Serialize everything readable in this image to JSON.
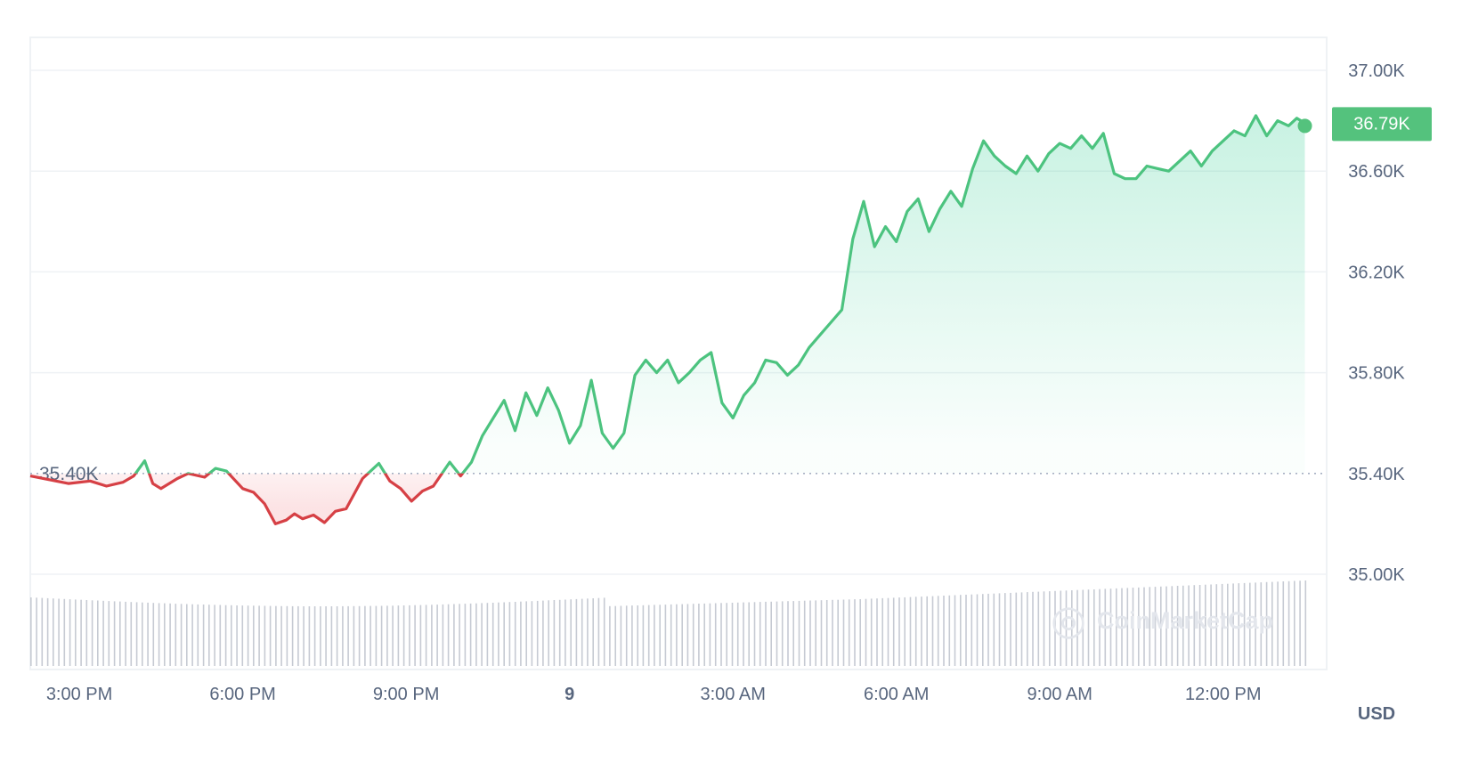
{
  "chart_data": {
    "type": "line",
    "y_unit": "USD",
    "yticks": [
      {
        "value": 35000,
        "label": "35.00K"
      },
      {
        "value": 35400,
        "label": "35.40K"
      },
      {
        "value": 35800,
        "label": "35.80K"
      },
      {
        "value": 36200,
        "label": "36.20K"
      },
      {
        "value": 36600,
        "label": "36.60K"
      },
      {
        "value": 37000,
        "label": "37.00K"
      }
    ],
    "ylim": [
      34640,
      37140
    ],
    "xlim": [
      14.1,
      37.9
    ],
    "xticks": [
      {
        "value": 15,
        "label": "3:00 PM",
        "bold": false
      },
      {
        "value": 18,
        "label": "6:00 PM",
        "bold": false
      },
      {
        "value": 21,
        "label": "9:00 PM",
        "bold": false
      },
      {
        "value": 24,
        "label": "9",
        "bold": true
      },
      {
        "value": 27,
        "label": "3:00 AM",
        "bold": false
      },
      {
        "value": 30,
        "label": "6:00 AM",
        "bold": false
      },
      {
        "value": 33,
        "label": "9:00 AM",
        "bold": false
      },
      {
        "value": 36,
        "label": "12:00 PM",
        "bold": false
      }
    ],
    "reference": {
      "value": 35400,
      "label": "35.40K"
    },
    "current": {
      "value": 36790,
      "label": "36.79K"
    },
    "colors": {
      "up": "#16c784",
      "down": "#ea3943",
      "line_up": "#4cc37f",
      "line_down": "#d64045",
      "badge": "#54c27d",
      "volume": "#c6cad3"
    },
    "series": [
      {
        "x": [
          14.1,
          14.8,
          15.2,
          15.5,
          15.8,
          16.0,
          16.2,
          16.35,
          16.5,
          16.8,
          17.0,
          17.3,
          17.5,
          17.7,
          18.0,
          18.2,
          18.4,
          18.6,
          18.8,
          18.95,
          19.1,
          19.3,
          19.5,
          19.7,
          19.9,
          20.2,
          20.5,
          20.7,
          20.9,
          21.1,
          21.3,
          21.5,
          21.8,
          22.0,
          22.2,
          22.4,
          22.6,
          22.8,
          23.0,
          23.2,
          23.4,
          23.6,
          23.8,
          24.0,
          24.2,
          24.4,
          24.6,
          24.8,
          25.0,
          25.2,
          25.4,
          25.6,
          25.8,
          26.0,
          26.2,
          26.4,
          26.6,
          26.8,
          27.0,
          27.2,
          27.4,
          27.6,
          27.8,
          28.0,
          28.2,
          28.4,
          28.6,
          28.8,
          29.0,
          29.2,
          29.4,
          29.6,
          29.8,
          30.0,
          30.2,
          30.4,
          30.6,
          30.8,
          31.0,
          31.2,
          31.4,
          31.6,
          31.8,
          32.0,
          32.2,
          32.4,
          32.6,
          32.8,
          33.0,
          33.2,
          33.4,
          33.6,
          33.8,
          34.0,
          34.2,
          34.4,
          34.6,
          34.8,
          35.0,
          35.2,
          35.4,
          35.6,
          35.8,
          36.0,
          36.2,
          36.4,
          36.6,
          36.8,
          37.0,
          37.2,
          37.35,
          37.5
        ],
        "y": [
          35390,
          35360,
          35370,
          35350,
          35365,
          35390,
          35450,
          35360,
          35340,
          35380,
          35400,
          35385,
          35420,
          35410,
          35340,
          35325,
          35280,
          35200,
          35215,
          35240,
          35220,
          35235,
          35205,
          35250,
          35260,
          35380,
          35440,
          35370,
          35340,
          35290,
          35330,
          35350,
          35445,
          35390,
          35445,
          35550,
          35620,
          35690,
          35570,
          35720,
          35630,
          35740,
          35650,
          35520,
          35590,
          35770,
          35560,
          35500,
          35560,
          35790,
          35850,
          35800,
          35850,
          35760,
          35800,
          35850,
          35880,
          35680,
          35620,
          35710,
          35760,
          35850,
          35840,
          35790,
          35830,
          35900,
          35950,
          36000,
          36050,
          36330,
          36480,
          36300,
          36380,
          36320,
          36440,
          36490,
          36360,
          36450,
          36520,
          36460,
          36610,
          36720,
          36660,
          36620,
          36590,
          36660,
          36600,
          36670,
          36710,
          36690,
          36740,
          36690,
          36750,
          36590,
          36570,
          36570,
          36620,
          36610,
          36600,
          36640,
          36680,
          36620,
          36680,
          36720,
          36760,
          36740,
          36820,
          36740,
          36800,
          36780,
          36810,
          36790
        ]
      }
    ],
    "volume": {
      "x_start": 14.1,
      "x_end": 37.5,
      "bars": 230
    }
  },
  "watermark": "CoinMarketCap"
}
